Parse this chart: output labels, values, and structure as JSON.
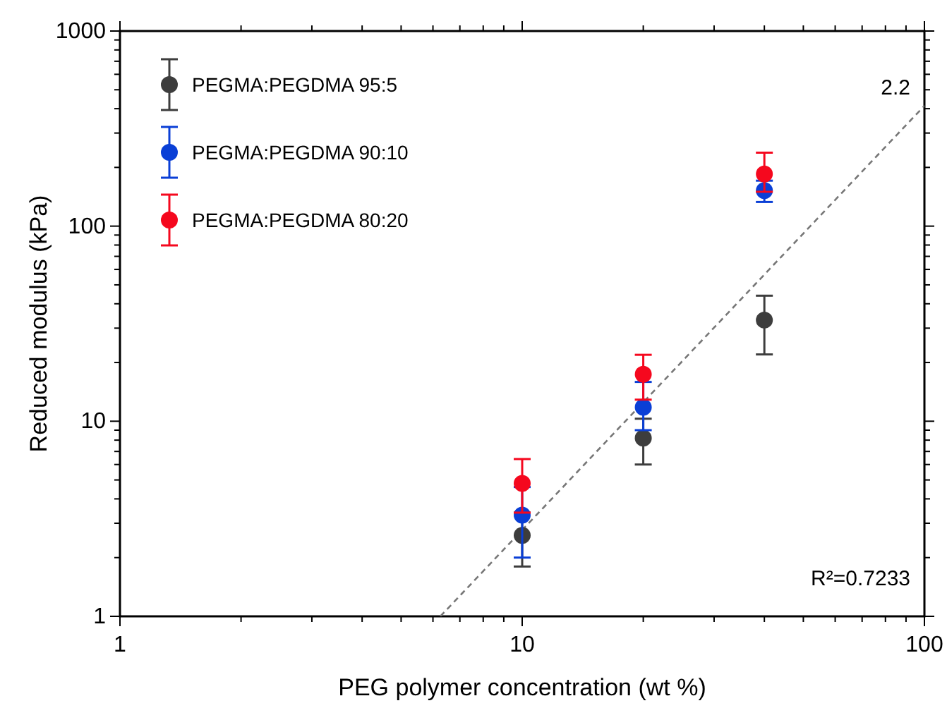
{
  "chart_data": {
    "type": "scatter",
    "xlabel": "PEG polymer concentration (wt %)",
    "ylabel": "Reduced modulus (kPa)",
    "log": "xy",
    "xlim": [
      1,
      100
    ],
    "ylim": [
      1,
      1000
    ],
    "xticks": [
      1,
      {
        "value": 2,
        "label": null
      },
      {
        "value": 3,
        "label": null
      },
      {
        "value": 4,
        "label": null
      },
      {
        "value": 5,
        "label": null
      },
      {
        "value": 6,
        "label": null
      },
      {
        "value": 7,
        "label": null
      },
      {
        "value": 8,
        "label": null
      },
      {
        "value": 9,
        "label": null
      },
      10,
      {
        "value": 20,
        "label": null
      },
      {
        "value": 30,
        "label": null
      },
      {
        "value": 40,
        "label": null
      },
      {
        "value": 50,
        "label": null
      },
      {
        "value": 60,
        "label": null
      },
      {
        "value": 70,
        "label": null
      },
      {
        "value": 80,
        "label": null
      },
      {
        "value": 90,
        "label": null
      },
      100
    ],
    "yticks": [
      1,
      {
        "value": 2,
        "label": null
      },
      {
        "value": 3,
        "label": null
      },
      {
        "value": 4,
        "label": null
      },
      {
        "value": 5,
        "label": null
      },
      {
        "value": 6,
        "label": null
      },
      {
        "value": 7,
        "label": null
      },
      {
        "value": 8,
        "label": null
      },
      {
        "value": 9,
        "label": null
      },
      10,
      {
        "value": 20,
        "label": null
      },
      {
        "value": 30,
        "label": null
      },
      {
        "value": 40,
        "label": null
      },
      {
        "value": 50,
        "label": null
      },
      {
        "value": 60,
        "label": null
      },
      {
        "value": 70,
        "label": null
      },
      {
        "value": 80,
        "label": null
      },
      {
        "value": 90,
        "label": null
      },
      100,
      {
        "value": 200,
        "label": null
      },
      {
        "value": 300,
        "label": null
      },
      {
        "value": 400,
        "label": null
      },
      {
        "value": 500,
        "label": null
      },
      {
        "value": 600,
        "label": null
      },
      {
        "value": 700,
        "label": null
      },
      {
        "value": 800,
        "label": null
      },
      {
        "value": 900,
        "label": null
      },
      1000
    ],
    "grid": false,
    "legend": "top left",
    "marker": "circle",
    "series": [
      {
        "name": "PEGMA:PEGDMA 95:5",
        "color": "#3d3d3d",
        "x": [
          10,
          20,
          40
        ],
        "values": [
          2.6,
          8.2,
          33
        ],
        "errors": [
          [
            1.8,
            3.4
          ],
          [
            6,
            10.3
          ],
          [
            22,
            44
          ]
        ]
      },
      {
        "name": "PEGMA:PEGDMA 90:10",
        "color": "#0a3fd6",
        "x": [
          10,
          20,
          40
        ],
        "values": [
          3.3,
          11.8,
          152
        ],
        "errors": [
          [
            2,
            4.6
          ],
          [
            9,
            15.9
          ],
          [
            133,
            171
          ]
        ]
      },
      {
        "name": "PEGMA:PEGDMA 80:20",
        "color": "#f5081e",
        "x": [
          10,
          20,
          40
        ],
        "values": [
          4.8,
          17.4,
          185
        ],
        "errors": [
          [
            3.4,
            6.4
          ],
          [
            12.9,
            21.9
          ],
          [
            150,
            238
          ]
        ]
      },
      {
        "type": "line",
        "color": "#777777",
        "line_style": "dashed",
        "marker": "none",
        "x": [
          6.26,
          100
        ],
        "values": [
          1,
          414
        ]
      }
    ],
    "annotations": [
      {
        "text": "2.2",
        "x": 100,
        "y": 414
      },
      "R²=0.7233"
    ]
  }
}
